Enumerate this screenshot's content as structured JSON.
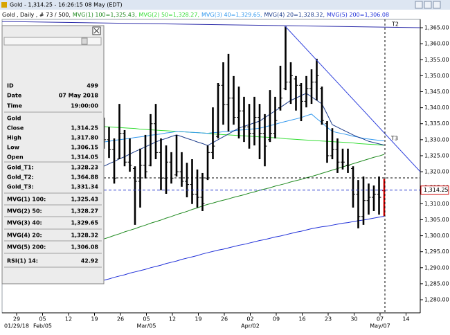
{
  "window_title": "Gold - 1,314.25 - 16:26:15  08 May (EDT)",
  "info_panel": {
    "rows": [
      [
        "ID",
        "499"
      ],
      [
        "Date",
        "07 May 2018"
      ],
      [
        "Time",
        "19:00:00"
      ],
      [
        "Gold"
      ],
      [
        "Close",
        "1,314.25"
      ],
      [
        "High",
        "1,317.80"
      ],
      [
        "Low",
        "1,306.15"
      ],
      [
        "Open",
        "1,314.05"
      ],
      [
        "Gold_T1:",
        "1,328.23"
      ],
      [
        "Gold_T2:",
        "1,364.88"
      ],
      [
        "Gold_T3:",
        "1,331.34"
      ],
      [
        "MVG(1) 100:",
        "1,325.43"
      ],
      [
        "MVG(2) 50:",
        "1,328.27"
      ],
      [
        "MVG(3) 40:",
        "1,329.65"
      ],
      [
        "MVG(4) 20:",
        "1,328.32"
      ],
      [
        "MVG(5) 200:",
        "1,306.08"
      ],
      [
        "RSI(1) 14:",
        "42.92"
      ]
    ]
  },
  "chart_data": {
    "type": "ohlc",
    "legend_prefix": "Gold , Daily , # 73 / 500,",
    "categories": [
      "29",
      null,
      null,
      null,
      null,
      "05",
      null,
      null,
      null,
      null,
      "12",
      null,
      null,
      null,
      null,
      "19",
      null,
      null,
      null,
      null,
      "26",
      null,
      null,
      null,
      null,
      "05",
      null,
      null,
      null,
      null,
      "12",
      null,
      null,
      null,
      null,
      "19",
      null,
      null,
      null,
      null,
      "26",
      null,
      null,
      null,
      null,
      "02",
      null,
      null,
      null,
      null,
      "09",
      null,
      null,
      null,
      null,
      "16",
      null,
      null,
      null,
      null,
      "23",
      null,
      null,
      null,
      null,
      "30",
      null,
      null,
      null,
      null,
      "07",
      null,
      null,
      null,
      null,
      "14"
    ],
    "month_labels": [
      "01/29/18",
      null,
      null,
      null,
      null,
      "Feb/05",
      null,
      null,
      null,
      null,
      null,
      null,
      null,
      null,
      null,
      null,
      null,
      null,
      null,
      null,
      null,
      null,
      null,
      null,
      null,
      "Mar/05",
      null,
      null,
      null,
      null,
      null,
      null,
      null,
      null,
      null,
      null,
      null,
      null,
      null,
      null,
      null,
      null,
      null,
      null,
      null,
      "Apr/02",
      null,
      null,
      null,
      null,
      null,
      null,
      null,
      null,
      null,
      null,
      null,
      null,
      null,
      null,
      null,
      null,
      null,
      null,
      null,
      null,
      null,
      null,
      null,
      null,
      "May/07",
      null,
      null,
      null,
      null,
      null
    ],
    "open": [
      null,
      null,
      null,
      null,
      null,
      null,
      null,
      null,
      null,
      null,
      null,
      null,
      null,
      null,
      null,
      null,
      1333,
      1330,
      1327,
      1324,
      1332,
      1323,
      1321,
      1317,
      1322,
      1322,
      1335,
      1326,
      1318,
      1323,
      1319,
      1320,
      1317,
      1316,
      1313,
      1312,
      1318,
      1326,
      1331,
      1347,
      1341,
      1343,
      1337,
      1339,
      1334,
      1332,
      1337,
      1332,
      1330,
      1332,
      1340,
      1346,
      1348,
      1349,
      1347,
      1342,
      1346,
      1348,
      1346,
      1335,
      1325,
      1327,
      1323,
      1322,
      1321,
      1313,
      1306,
      1311,
      1312,
      1313,
      1314.05,
      null,
      null,
      null,
      null,
      null
    ],
    "high": [
      null,
      null,
      null,
      null,
      null,
      null,
      null,
      null,
      null,
      null,
      null,
      null,
      null,
      null,
      null,
      null,
      1336.9,
      1334.0,
      1330.4,
      1341.2,
      1333.0,
      1330.4,
      1321.7,
      1327.2,
      1331.5,
      1338.0,
      1341.2,
      1330.4,
      1328.2,
      1326.1,
      1331.5,
      1326.1,
      1322.8,
      1323.9,
      1320.7,
      1319.6,
      1328.2,
      1340.1,
      1347.7,
      1354.2,
      1356.8,
      1349.9,
      1346.6,
      1343.4,
      1341.2,
      1343.4,
      1341.2,
      1338.0,
      1345.5,
      1343.4,
      1353.1,
      1365.4,
      1354.2,
      1349.9,
      1347.7,
      1349.9,
      1352.0,
      1355.3,
      1346.6,
      1335.8,
      1333.6,
      1330.4,
      1327.2,
      1327.2,
      1321.7,
      1317.4,
      1318.5,
      1316.3,
      1315.7,
      1318.5,
      1317.8,
      null,
      null,
      null,
      null,
      null
    ],
    "low": [
      null,
      null,
      null,
      null,
      null,
      null,
      null,
      null,
      null,
      null,
      null,
      null,
      null,
      null,
      null,
      null,
      1327.2,
      1324.3,
      1316.3,
      1323.9,
      1321.7,
      1320.0,
      1303.4,
      1308.8,
      1317.9,
      1321.7,
      1323.9,
      1314.2,
      1313.1,
      1316.3,
      1318.5,
      1315.3,
      1312.0,
      1309.9,
      1308.8,
      1307.7,
      1317.4,
      1323.9,
      1330.4,
      1334.7,
      1332.6,
      1334.7,
      1330.4,
      1329.3,
      1327.2,
      1328.2,
      1323.9,
      1321.7,
      1329.3,
      1330.4,
      1339.1,
      1345.5,
      1341.2,
      1339.1,
      1335.8,
      1340.1,
      1341.2,
      1342.3,
      1334.7,
      1322.8,
      1323.9,
      1319.6,
      1320.7,
      1319.6,
      1308.8,
      1302.3,
      1303.4,
      1306.6,
      1307.7,
      1306.6,
      1306.15,
      null,
      null,
      null,
      null,
      null
    ],
    "close": [
      null,
      null,
      null,
      null,
      null,
      null,
      null,
      null,
      null,
      null,
      null,
      null,
      null,
      null,
      null,
      null,
      1330,
      1327,
      1318,
      1332,
      1323,
      1322,
      1317,
      1322,
      1320,
      1335,
      1326,
      1318,
      1323,
      1318,
      1320,
      1317,
      1316,
      1313,
      1312,
      1310,
      1326,
      1328,
      1347,
      1341,
      1343,
      1337,
      1339,
      1334,
      1332,
      1337,
      1332,
      1328,
      1332,
      1336,
      1343,
      1348,
      1350,
      1347,
      1342,
      1346,
      1348,
      1350,
      1336,
      1325,
      1327,
      1323,
      1323,
      1322,
      1313,
      1306,
      1311,
      1312,
      1313,
      1312,
      1314.25,
      null,
      null,
      null,
      null,
      null
    ],
    "bar_color": "#000000",
    "current_bar_color": "#cc0000",
    "series": [
      {
        "name": "MVG(1) 100=1,325.43,",
        "color": "#1f8a1f",
        "values": [
          null,
          null,
          null,
          null,
          null,
          null,
          null,
          null,
          null,
          null,
          null,
          null,
          null,
          null,
          null,
          null,
          1299.0,
          1299.5,
          1300.1,
          1300.6,
          1301.2,
          1301.7,
          1302.2,
          1302.8,
          1303.3,
          1303.9,
          1304.4,
          1304.9,
          1305.5,
          1306.0,
          1306.6,
          1307.1,
          1307.6,
          1308.2,
          1308.7,
          1309.3,
          1309.8,
          1310.2,
          1310.7,
          1311.1,
          1311.5,
          1312.0,
          1312.4,
          1312.8,
          1313.3,
          1313.7,
          1314.2,
          1314.6,
          1315.0,
          1315.5,
          1315.9,
          1316.3,
          1316.8,
          1317.2,
          1317.6,
          1318.1,
          1318.5,
          1319.0,
          1319.5,
          1320.0,
          1320.5,
          1321.0,
          1321.5,
          1322.0,
          1322.5,
          1323.0,
          1323.5,
          1324.0,
          1324.5,
          1324.9,
          1325.43,
          null,
          null,
          null,
          null,
          null
        ]
      },
      {
        "name": "MVG(2) 50=1,328.27,",
        "color": "#33dd33",
        "values": [
          null,
          null,
          null,
          null,
          null,
          null,
          null,
          null,
          null,
          null,
          null,
          null,
          null,
          null,
          null,
          null,
          1334.1,
          1334.0,
          1333.9,
          1333.8,
          1333.7,
          1333.6,
          1333.5,
          1333.3,
          1333.2,
          1333.1,
          1333.0,
          1332.9,
          1332.8,
          1332.7,
          1332.6,
          1332.5,
          1332.4,
          1332.3,
          1332.2,
          1332.1,
          1332.0,
          1331.8,
          1331.7,
          1331.6,
          1331.5,
          1331.4,
          1331.3,
          1331.2,
          1331.1,
          1331.0,
          1330.9,
          1330.8,
          1330.7,
          1330.6,
          1330.5,
          1330.3,
          1330.2,
          1330.1,
          1330.0,
          1329.9,
          1329.8,
          1329.7,
          1329.6,
          1329.5,
          1329.4,
          1329.3,
          1329.2,
          1329.1,
          1329.0,
          1328.8,
          1328.7,
          1328.6,
          1328.5,
          1328.4,
          1328.27,
          null,
          null,
          null,
          null,
          null
        ]
      },
      {
        "name": "MVG(3) 40=1,329.65,",
        "color": "#3399ee",
        "values": [
          null,
          null,
          null,
          null,
          null,
          null,
          null,
          null,
          null,
          null,
          null,
          null,
          null,
          null,
          null,
          null,
          1329.3,
          1329.5,
          1329.8,
          1330.0,
          1330.2,
          1330.4,
          1330.7,
          1330.9,
          1331.1,
          1331.4,
          1331.6,
          1331.8,
          1332.1,
          1332.3,
          1332.6,
          1332.5,
          1332.4,
          1332.3,
          1332.2,
          1332.1,
          1332.0,
          1332.2,
          1332.3,
          1332.5,
          1332.6,
          1332.8,
          1333.0,
          1333.1,
          1333.3,
          1333.4,
          1333.6,
          1334.0,
          1334.4,
          1334.8,
          1335.3,
          1335.7,
          1336.1,
          1336.5,
          1336.9,
          1337.5,
          1338.0,
          1336.6,
          1335.3,
          1333.9,
          1332.6,
          1332.2,
          1331.9,
          1331.5,
          1331.1,
          1330.8,
          1330.4,
          1330.2,
          1330.0,
          1329.8,
          1329.65,
          null,
          null,
          null,
          null,
          null
        ]
      },
      {
        "name": "MVG(4) 20=1,328.32,",
        "color": "#1a3a8a",
        "values": [
          null,
          null,
          null,
          null,
          null,
          null,
          null,
          null,
          null,
          null,
          null,
          null,
          null,
          null,
          null,
          null,
          1321.7,
          1322.5,
          1323.2,
          1324.0,
          1324.7,
          1325.5,
          1326.3,
          1327.0,
          1327.8,
          1328.5,
          1329.3,
          1329.9,
          1330.4,
          1331.0,
          1331.5,
          1331.0,
          1330.4,
          1329.9,
          1329.3,
          1328.8,
          1328.2,
          1329.1,
          1330.0,
          1330.9,
          1331.8,
          1332.7,
          1333.6,
          1334.2,
          1334.7,
          1335.3,
          1335.8,
          1336.9,
          1338.0,
          1339.0,
          1340.1,
          1341.2,
          1342.3,
          1343.0,
          1343.8,
          1344.5,
          1343.4,
          1342.3,
          1341.2,
          1338.0,
          1334.7,
          1333.9,
          1333.1,
          1332.3,
          1331.5,
          1330.8,
          1330.2,
          1329.5,
          1329.1,
          1328.7,
          1328.32,
          null,
          null,
          null,
          null,
          null
        ]
      },
      {
        "name": "MVG(5) 200=1,306.08",
        "color": "#1f2fd8",
        "values": [
          null,
          null,
          null,
          null,
          null,
          null,
          null,
          null,
          null,
          null,
          null,
          null,
          null,
          null,
          null,
          null,
          1286.1,
          1286.5,
          1287.0,
          1287.4,
          1287.8,
          1288.3,
          1288.7,
          1289.1,
          1289.5,
          1290.0,
          1290.4,
          1290.8,
          1291.3,
          1291.7,
          1292.1,
          1292.6,
          1293.0,
          1293.4,
          1293.8,
          1294.3,
          1294.7,
          1295.1,
          1295.5,
          1295.8,
          1296.2,
          1296.6,
          1297.0,
          1297.3,
          1297.7,
          1298.1,
          1298.5,
          1298.8,
          1299.2,
          1299.6,
          1299.9,
          1300.3,
          1300.7,
          1301.1,
          1301.4,
          1301.8,
          1302.2,
          1302.5,
          1302.8,
          1303.0,
          1303.3,
          1303.6,
          1303.9,
          1304.1,
          1304.4,
          1304.7,
          1304.9,
          1305.2,
          1305.5,
          1305.8,
          1306.08,
          null,
          null,
          null,
          null,
          null
        ]
      }
    ],
    "price_marker": {
      "value": 1314.25,
      "label": "1,314.25"
    },
    "trendline_labels": [
      "T2",
      "T3"
    ],
    "ylim": [
      1275.9,
      1367.6
    ],
    "yticks": [
      {
        "value": 1280,
        "label": "1,280.00"
      },
      {
        "value": 1285,
        "label": "1,285.00"
      },
      {
        "value": 1290,
        "label": "1,290.00"
      },
      {
        "value": 1295,
        "label": "1,295.00"
      },
      {
        "value": 1300,
        "label": "1,300.00"
      },
      {
        "value": 1305,
        "label": "1,305.00"
      },
      {
        "value": 1310,
        "label": "1,310.00"
      },
      {
        "value": 1315,
        "label": "1,315.00"
      },
      {
        "value": 1320,
        "label": "1,320.00"
      },
      {
        "value": 1325,
        "label": "1,325.00"
      },
      {
        "value": 1330,
        "label": "1,330.00"
      },
      {
        "value": 1335,
        "label": "1,335.00"
      },
      {
        "value": 1340,
        "label": "1,340.00"
      },
      {
        "value": 1345,
        "label": "1,345.00"
      },
      {
        "value": 1350,
        "label": "1,350.00"
      },
      {
        "value": 1355,
        "label": "1,355.00"
      },
      {
        "value": 1360,
        "label": "1,360.00"
      },
      {
        "value": 1365,
        "label": "1,365.00"
      }
    ]
  }
}
